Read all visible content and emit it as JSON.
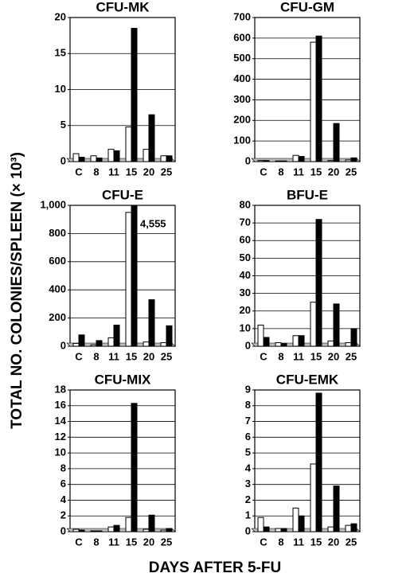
{
  "ylabel": "TOTAL NO. COLONIES/SPLEEN (× 10³)",
  "xlabel": "DAYS AFTER 5-FU",
  "chart_data": [
    {
      "type": "bar",
      "title": "CFU-MK",
      "categories": [
        "C",
        "8",
        "11",
        "15",
        "20",
        "25"
      ],
      "series": [
        {
          "color": "#ffffff",
          "values": [
            1.1,
            0.8,
            1.7,
            4.8,
            1.7,
            0.8
          ]
        },
        {
          "color": "#000000",
          "values": [
            0.6,
            0.5,
            1.5,
            18.5,
            6.5,
            0.8
          ]
        }
      ],
      "ylim": [
        0,
        20
      ],
      "yticks": [
        0,
        5,
        10,
        15,
        20
      ],
      "grid": true
    },
    {
      "type": "bar",
      "title": "CFU-GM",
      "categories": [
        "C",
        "8",
        "11",
        "15",
        "20",
        "25"
      ],
      "series": [
        {
          "color": "#ffffff",
          "values": [
            5,
            3,
            30,
            580,
            5,
            8
          ]
        },
        {
          "color": "#000000",
          "values": [
            5,
            3,
            25,
            610,
            185,
            18
          ]
        }
      ],
      "ylim": [
        0,
        700
      ],
      "yticks": [
        0,
        100,
        200,
        300,
        400,
        500,
        600,
        700
      ],
      "grid": true
    },
    {
      "type": "bar",
      "title": "CFU-E",
      "categories": [
        "C",
        "8",
        "11",
        "15",
        "20",
        "25"
      ],
      "series": [
        {
          "color": "#ffffff",
          "values": [
            20,
            10,
            60,
            950,
            30,
            25
          ]
        },
        {
          "color": "#000000",
          "values": [
            80,
            40,
            150,
            4555,
            330,
            145
          ],
          "value_labels": [
            null,
            null,
            null,
            "4,555",
            null,
            null
          ]
        }
      ],
      "ylim": [
        0,
        1000
      ],
      "yticks": [
        0,
        200,
        400,
        600,
        800,
        {
          "value": 1000,
          "label": "1,000"
        }
      ],
      "grid": true
    },
    {
      "type": "bar",
      "title": "BFU-E",
      "categories": [
        "C",
        "8",
        "11",
        "15",
        "20",
        "25"
      ],
      "series": [
        {
          "color": "#ffffff",
          "values": [
            12,
            2,
            6,
            25,
            3,
            2
          ]
        },
        {
          "color": "#000000",
          "values": [
            5,
            1.5,
            6,
            72,
            24,
            10
          ]
        }
      ],
      "ylim": [
        0,
        80
      ],
      "yticks": [
        0,
        10,
        20,
        30,
        40,
        50,
        60,
        70,
        80
      ],
      "grid": true
    },
    {
      "type": "bar",
      "title": "CFU-MIX",
      "categories": [
        "C",
        "8",
        "11",
        "15",
        "20",
        "25"
      ],
      "series": [
        {
          "color": "#ffffff",
          "values": [
            0.3,
            0.1,
            0.6,
            1.8,
            0.3,
            0.2
          ]
        },
        {
          "color": "#000000",
          "values": [
            0.2,
            0.1,
            0.8,
            16.3,
            2.1,
            0.4
          ]
        }
      ],
      "ylim": [
        0,
        18
      ],
      "yticks": [
        0,
        2,
        4,
        6,
        8,
        10,
        12,
        14,
        16,
        18
      ],
      "grid": true
    },
    {
      "type": "bar",
      "title": "CFU-EMK",
      "categories": [
        "C",
        "8",
        "11",
        "15",
        "20",
        "25"
      ],
      "series": [
        {
          "color": "#ffffff",
          "values": [
            0.9,
            0.2,
            1.5,
            4.3,
            0.3,
            0.4
          ]
        },
        {
          "color": "#000000",
          "values": [
            0.3,
            0.2,
            1.0,
            8.8,
            2.9,
            0.5
          ]
        }
      ],
      "ylim": [
        0,
        9
      ],
      "yticks": [
        0,
        1,
        2,
        3,
        4,
        5,
        6,
        7,
        8,
        9
      ],
      "grid": true
    }
  ]
}
